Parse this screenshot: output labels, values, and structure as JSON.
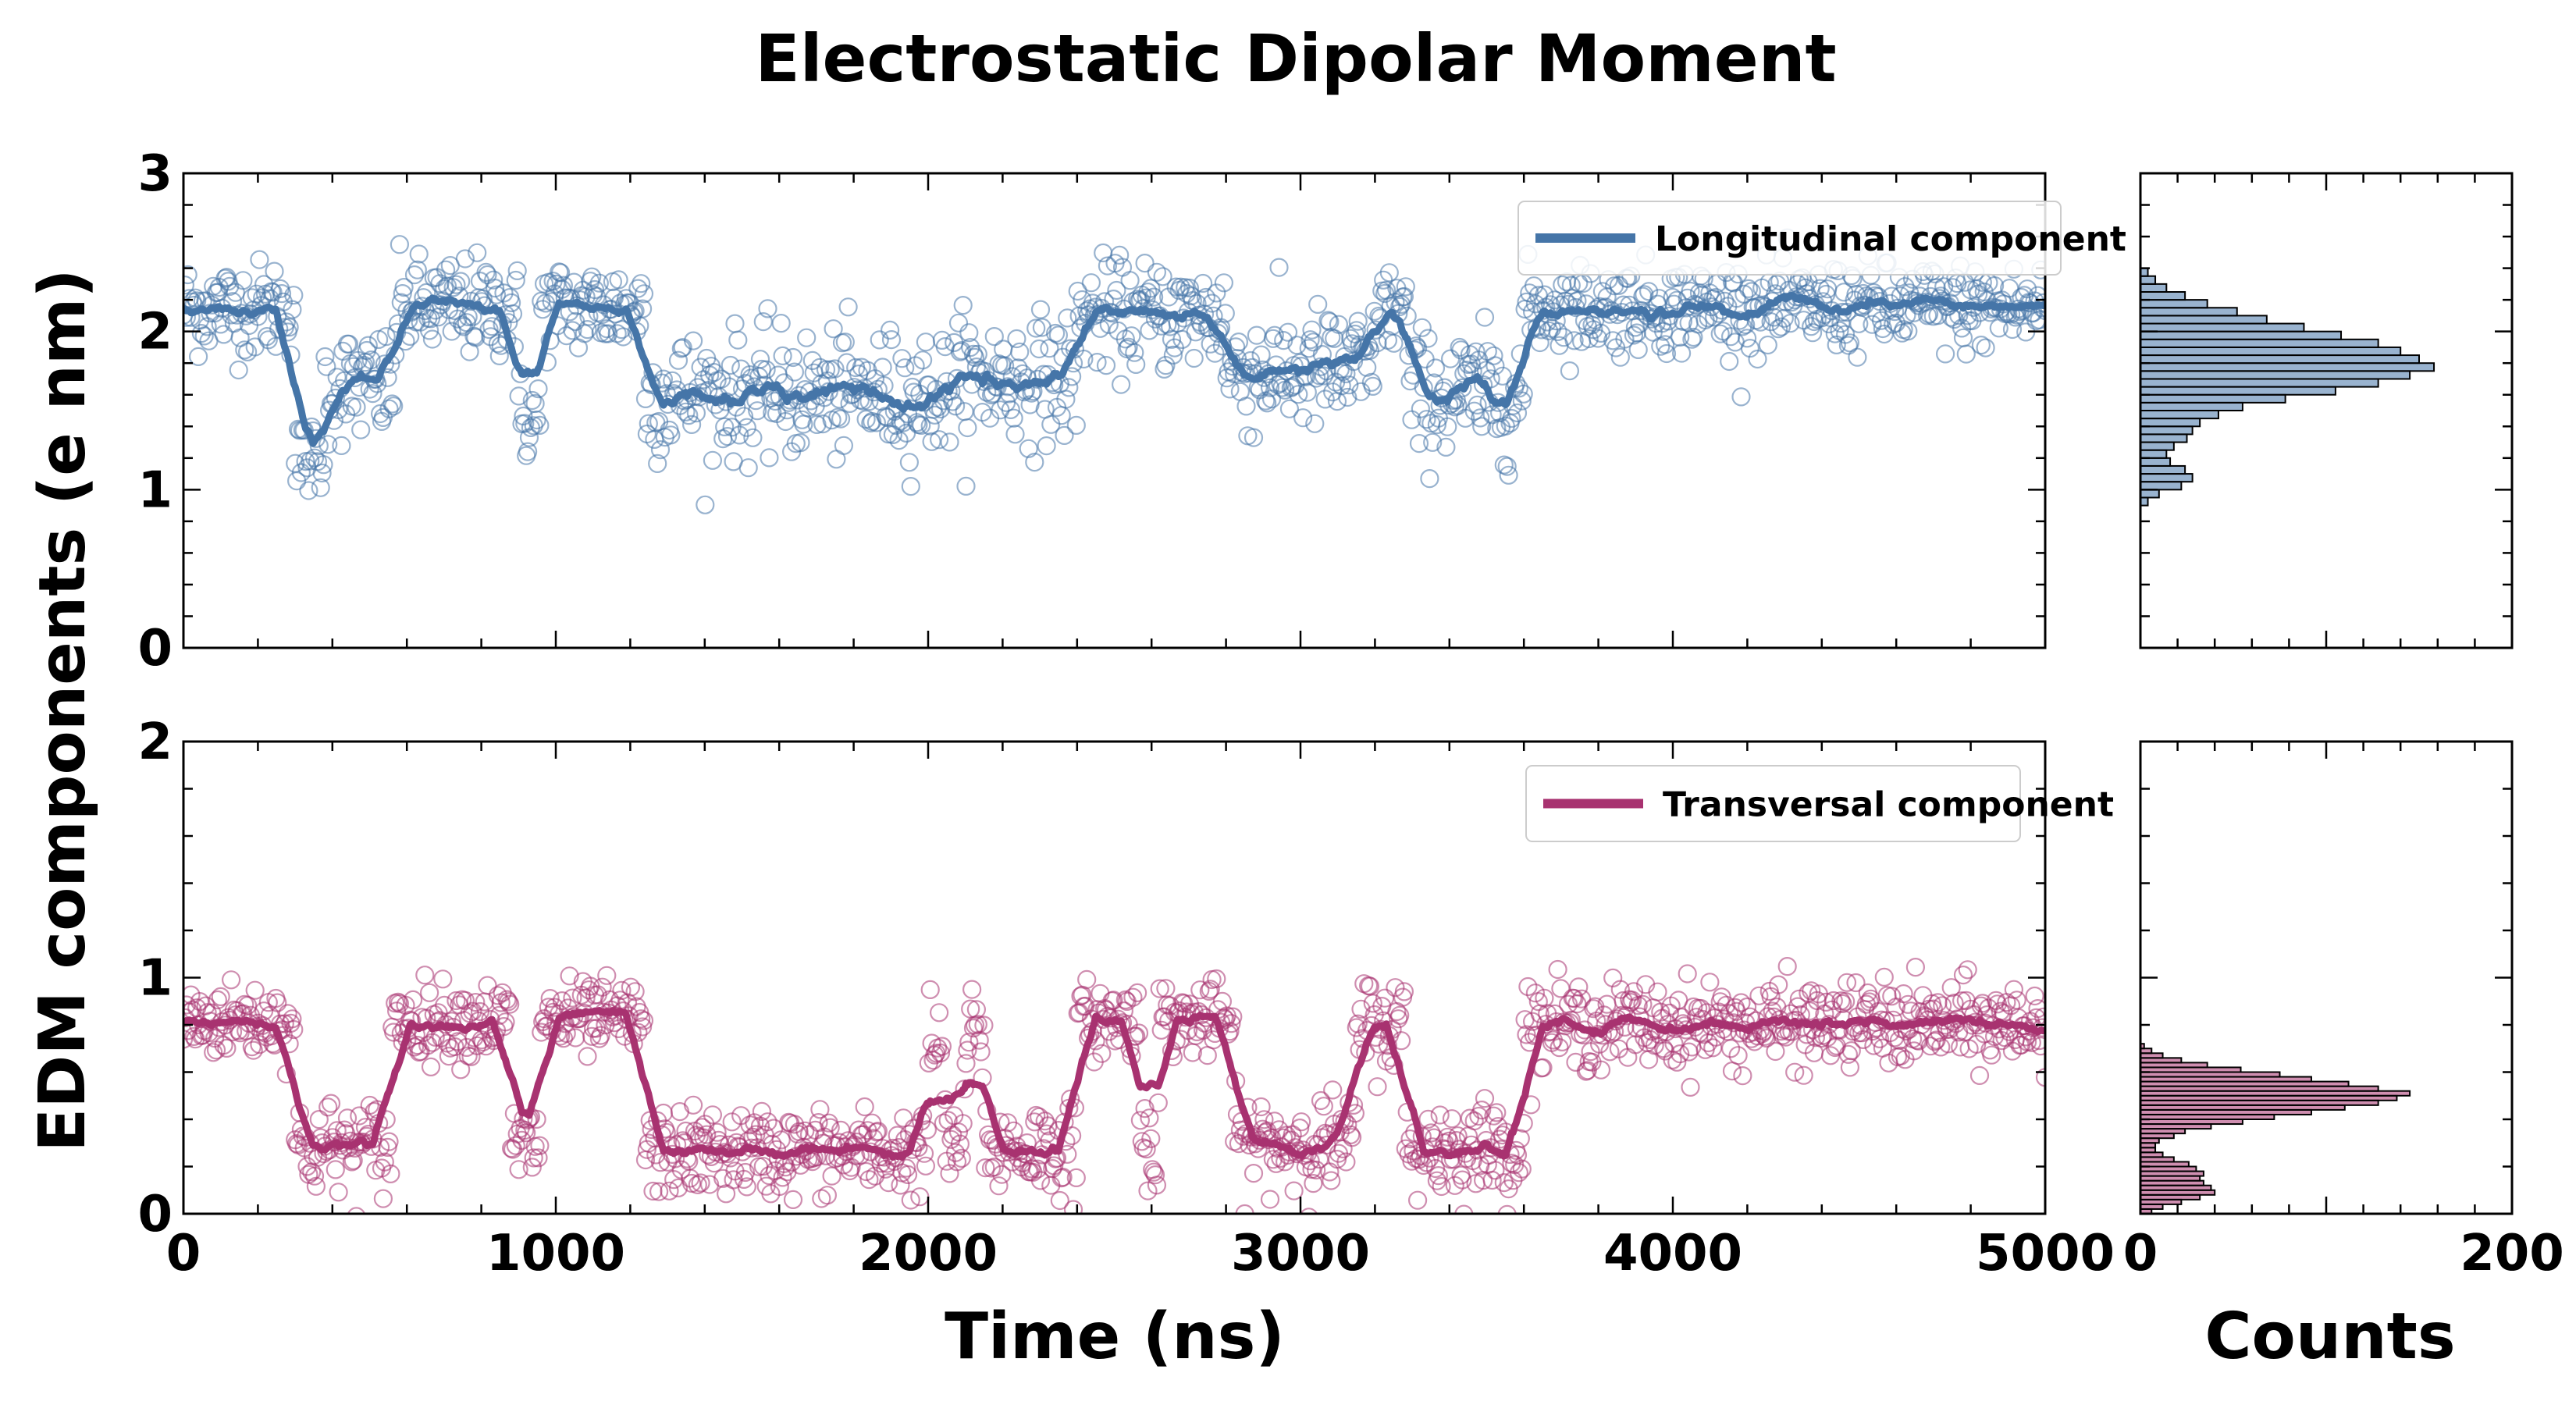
{
  "chart_data": {
    "type": "scatter",
    "title": "Electrostatic Dipolar Moment",
    "xlabel": "Time (ns)",
    "ylabel": "EDM components (e nm)",
    "hist_xlabel": "Counts",
    "colors": {
      "longitudinal": "#4575a8",
      "transversal": "#a83270"
    },
    "panels": [
      {
        "name": "longitudinal",
        "legend": "Longitudinal component",
        "ylim": [
          0,
          3
        ],
        "yticks": [
          "0",
          "1",
          "2",
          "3"
        ],
        "xlim": [
          0,
          5000
        ],
        "segments": [
          {
            "t0": 0,
            "t1": 300,
            "mean": 2.15,
            "sd": 0.15
          },
          {
            "t0": 300,
            "t1": 380,
            "mean": 1.2,
            "sd": 0.12
          },
          {
            "t0": 380,
            "t1": 570,
            "mean": 1.65,
            "sd": 0.18
          },
          {
            "t0": 570,
            "t1": 900,
            "mean": 2.15,
            "sd": 0.16
          },
          {
            "t0": 900,
            "t1": 960,
            "mean": 1.45,
            "sd": 0.15
          },
          {
            "t0": 960,
            "t1": 1240,
            "mean": 2.15,
            "sd": 0.15
          },
          {
            "t0": 1240,
            "t1": 2050,
            "mean": 1.6,
            "sd": 0.2
          },
          {
            "t0": 2050,
            "t1": 2400,
            "mean": 1.7,
            "sd": 0.2
          },
          {
            "t0": 2400,
            "t1": 2800,
            "mean": 2.1,
            "sd": 0.17
          },
          {
            "t0": 2800,
            "t1": 3200,
            "mean": 1.75,
            "sd": 0.2
          },
          {
            "t0": 3200,
            "t1": 3290,
            "mean": 2.15,
            "sd": 0.15
          },
          {
            "t0": 3290,
            "t1": 3600,
            "mean": 1.6,
            "sd": 0.2
          },
          {
            "t0": 3600,
            "t1": 5000,
            "mean": 2.15,
            "sd": 0.14
          }
        ],
        "hist": {
          "bin_start": 0.9,
          "bin_width": 0.05,
          "counts": [
            4,
            10,
            22,
            28,
            24,
            16,
            14,
            18,
            25,
            28,
            32,
            42,
            55,
            78,
            105,
            128,
            145,
            158,
            150,
            140,
            128,
            108,
            88,
            68,
            52,
            36,
            24,
            14,
            8,
            4
          ]
        }
      },
      {
        "name": "transversal",
        "legend": "Transversal component",
        "ylim": [
          0,
          2
        ],
        "yticks": [
          "0",
          "1",
          "2"
        ],
        "xlim": [
          0,
          5000
        ],
        "xticks": [
          "0",
          "1000",
          "2000",
          "3000",
          "4000",
          "5000"
        ],
        "segments": [
          {
            "t0": 0,
            "t1": 300,
            "mean": 0.82,
            "sd": 0.08
          },
          {
            "t0": 300,
            "t1": 560,
            "mean": 0.28,
            "sd": 0.1
          },
          {
            "t0": 560,
            "t1": 880,
            "mean": 0.82,
            "sd": 0.08
          },
          {
            "t0": 880,
            "t1": 960,
            "mean": 0.3,
            "sd": 0.1
          },
          {
            "t0": 960,
            "t1": 1240,
            "mean": 0.82,
            "sd": 0.08
          },
          {
            "t0": 1240,
            "t1": 2000,
            "mean": 0.26,
            "sd": 0.09
          },
          {
            "t0": 2000,
            "t1": 2040,
            "mean": 0.72,
            "sd": 0.12
          },
          {
            "t0": 2040,
            "t1": 2100,
            "mean": 0.3,
            "sd": 0.1
          },
          {
            "t0": 2100,
            "t1": 2150,
            "mean": 0.75,
            "sd": 0.12
          },
          {
            "t0": 2150,
            "t1": 2400,
            "mean": 0.28,
            "sd": 0.1
          },
          {
            "t0": 2400,
            "t1": 2570,
            "mean": 0.82,
            "sd": 0.08
          },
          {
            "t0": 2570,
            "t1": 2620,
            "mean": 0.35,
            "sd": 0.12
          },
          {
            "t0": 2620,
            "t1": 2820,
            "mean": 0.82,
            "sd": 0.08
          },
          {
            "t0": 2820,
            "t1": 3150,
            "mean": 0.3,
            "sd": 0.1
          },
          {
            "t0": 3150,
            "t1": 3280,
            "mean": 0.8,
            "sd": 0.1
          },
          {
            "t0": 3280,
            "t1": 3600,
            "mean": 0.28,
            "sd": 0.1
          },
          {
            "t0": 3600,
            "t1": 5000,
            "mean": 0.8,
            "sd": 0.09
          }
        ],
        "hist": {
          "bin_start": 0.0,
          "bin_width": 0.02,
          "counts": [
            6,
            12,
            22,
            32,
            40,
            38,
            34,
            32,
            34,
            30,
            26,
            18,
            12,
            8,
            8,
            10,
            18,
            24,
            38,
            55,
            72,
            92,
            110,
            128,
            138,
            145,
            128,
            112,
            92,
            75,
            54,
            36,
            22,
            12,
            6,
            2
          ]
        }
      }
    ],
    "hist_xlim": [
      0,
      200
    ],
    "hist_xticks": [
      "0",
      "200"
    ]
  }
}
